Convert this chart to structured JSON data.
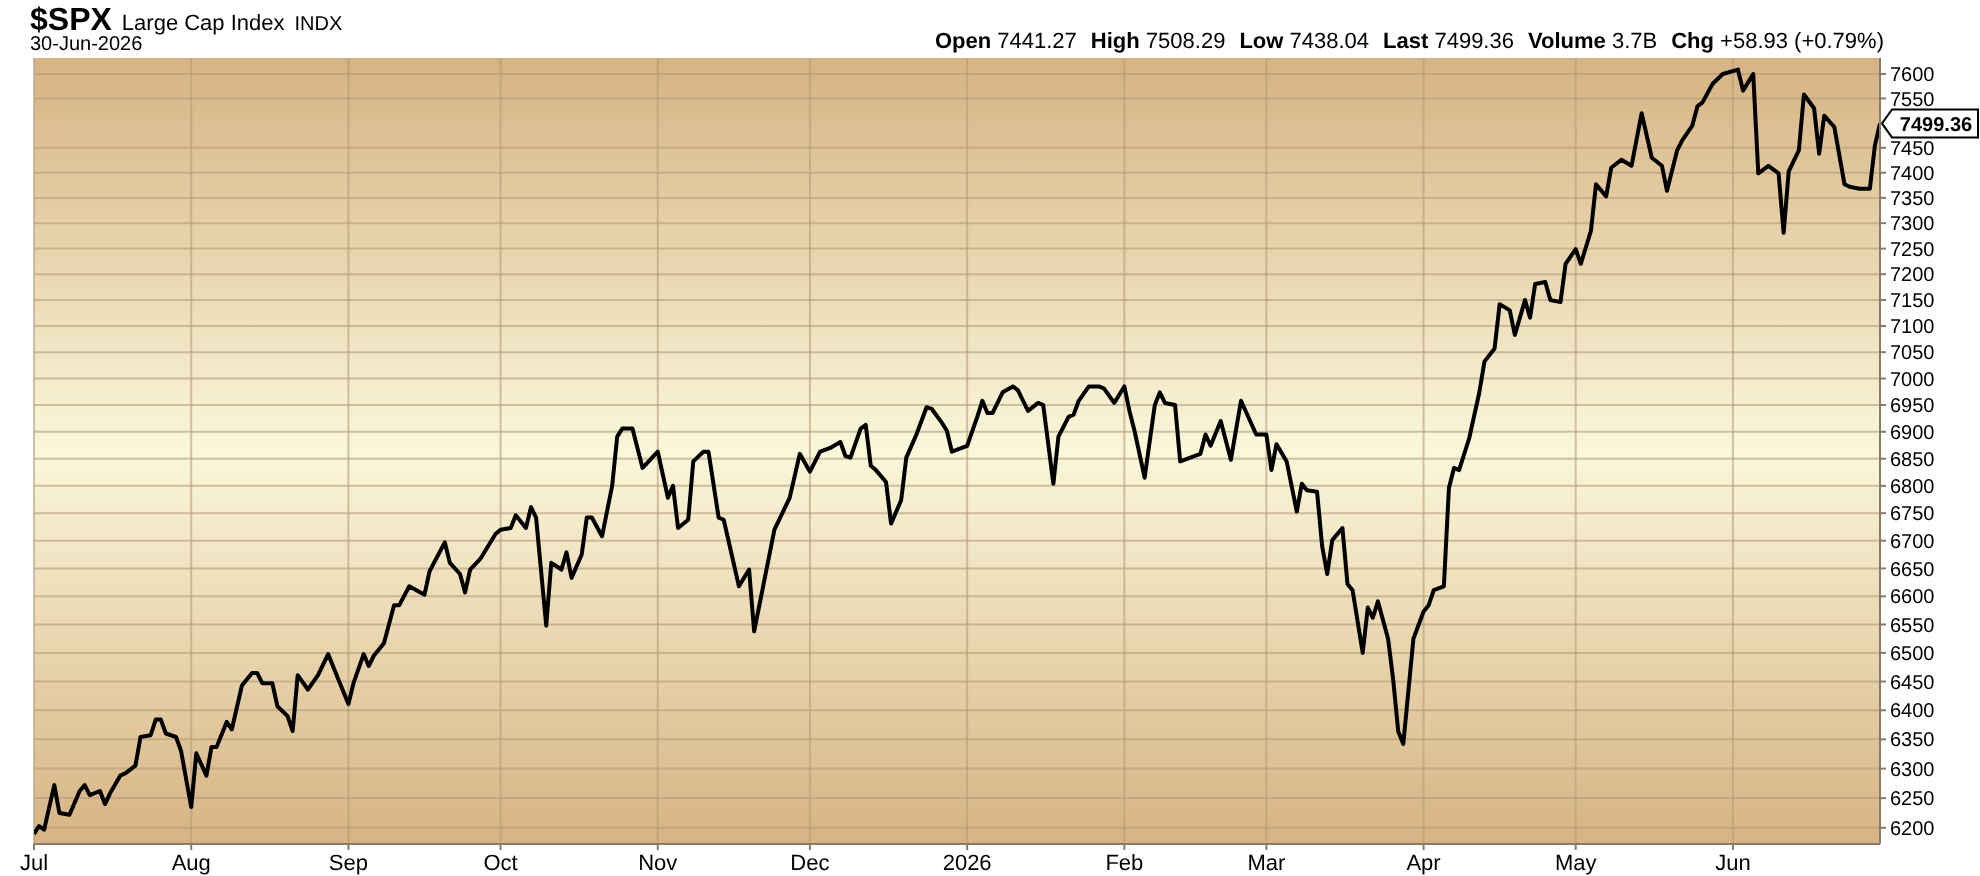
{
  "chart_data": {
    "type": "line",
    "title": "$SPX",
    "subtitle": "30-Jun-2026",
    "annotations": [
      "Large Cap Index",
      "INDX",
      "Open 7441.27",
      "High 7508.29",
      "Low 7438.04",
      "Last 7499.36",
      "Volume 3.7B",
      "Chg +58.93 (+0.79%)",
      {
        "text": "7499.36",
        "x": "2026-06-30",
        "y": 7499.36
      }
    ],
    "log": "y",
    "grid": true,
    "marker": "none",
    "line_style": "solid",
    "xlim": [
      "2025-07-01",
      "2026-06-30"
    ],
    "xticks": [
      {
        "value": "2025-07-01",
        "label": "Jul"
      },
      {
        "value": "2025-08-01",
        "label": "Aug"
      },
      {
        "value": "2025-09-01",
        "label": "Sep"
      },
      {
        "value": "2025-10-01",
        "label": "Oct"
      },
      {
        "value": "2025-11-01",
        "label": "Nov"
      },
      {
        "value": "2025-12-01",
        "label": "Dec"
      },
      {
        "value": "2026-01-01",
        "label": "2026"
      },
      {
        "value": "2026-02-01",
        "label": "Feb"
      },
      {
        "value": "2026-03-01",
        "label": "Mar"
      },
      {
        "value": "2026-04-01",
        "label": "Apr"
      },
      {
        "value": "2026-05-01",
        "label": "May"
      },
      {
        "value": "2026-06-01",
        "label": "Jun"
      }
    ],
    "ylim": [
      6173,
      7633
    ],
    "yticks": [
      6200,
      6250,
      6300,
      6350,
      6400,
      6450,
      6500,
      6550,
      6600,
      6650,
      6700,
      6750,
      6800,
      6850,
      6900,
      6950,
      7000,
      7050,
      7100,
      7150,
      7200,
      7250,
      7300,
      7350,
      7400,
      7450,
      7550,
      7600
    ],
    "x": [
      "2025-07-01",
      "2025-07-02",
      "2025-07-03",
      "2025-07-05",
      "2025-07-06",
      "2025-07-08",
      "2025-07-10",
      "2025-07-11",
      "2025-07-12",
      "2025-07-14",
      "2025-07-15",
      "2025-07-16",
      "2025-07-18",
      "2025-07-19",
      "2025-07-21",
      "2025-07-22",
      "2025-07-24",
      "2025-07-25",
      "2025-07-26",
      "2025-07-27",
      "2025-07-29",
      "2025-07-30",
      "2025-08-01",
      "2025-08-02",
      "2025-08-04",
      "2025-08-05",
      "2025-08-06",
      "2025-08-08",
      "2025-08-09",
      "2025-08-11",
      "2025-08-13",
      "2025-08-14",
      "2025-08-15",
      "2025-08-17",
      "2025-08-18",
      "2025-08-20",
      "2025-08-21",
      "2025-08-22",
      "2025-08-24",
      "2025-08-26",
      "2025-08-28",
      "2025-08-30",
      "2025-09-01",
      "2025-09-02",
      "2025-09-04",
      "2025-09-05",
      "2025-09-06",
      "2025-09-08",
      "2025-09-10",
      "2025-09-11",
      "2025-09-13",
      "2025-09-16",
      "2025-09-17",
      "2025-09-20",
      "2025-09-21",
      "2025-09-23",
      "2025-09-24",
      "2025-09-25",
      "2025-09-27",
      "2025-09-30",
      "2025-10-01",
      "2025-10-03",
      "2025-10-04",
      "2025-10-06",
      "2025-10-07",
      "2025-10-08",
      "2025-10-10",
      "2025-10-11",
      "2025-10-13",
      "2025-10-14",
      "2025-10-15",
      "2025-10-17",
      "2025-10-18",
      "2025-10-19",
      "2025-10-21",
      "2025-10-23",
      "2025-10-24",
      "2025-10-25",
      "2025-10-27",
      "2025-10-29",
      "2025-11-01",
      "2025-11-03",
      "2025-11-04",
      "2025-11-05",
      "2025-11-07",
      "2025-11-08",
      "2025-11-10",
      "2025-11-11",
      "2025-11-13",
      "2025-11-14",
      "2025-11-17",
      "2025-11-19",
      "2025-11-20",
      "2025-11-24",
      "2025-11-27",
      "2025-11-29",
      "2025-12-01",
      "2025-12-03",
      "2025-12-05",
      "2025-12-07",
      "2025-12-08",
      "2025-12-09",
      "2025-12-11",
      "2025-12-12",
      "2025-12-13",
      "2025-12-14",
      "2025-12-16",
      "2025-12-17",
      "2025-12-19",
      "2025-12-20",
      "2025-12-22",
      "2025-12-24",
      "2025-12-25",
      "2025-12-27",
      "2025-12-28",
      "2025-12-29",
      "2026-01-01",
      "2026-01-03",
      "2026-01-04",
      "2026-01-05",
      "2026-01-06",
      "2026-01-08",
      "2026-01-10",
      "2026-01-11",
      "2026-01-13",
      "2026-01-15",
      "2026-01-16",
      "2026-01-18",
      "2026-01-19",
      "2026-01-21",
      "2026-01-22",
      "2026-01-23",
      "2026-01-25",
      "2026-01-27",
      "2026-01-28",
      "2026-01-30",
      "2026-02-01",
      "2026-02-02",
      "2026-02-03",
      "2026-02-05",
      "2026-02-07",
      "2026-02-08",
      "2026-02-09",
      "2026-02-11",
      "2026-02-12",
      "2026-02-14",
      "2026-02-16",
      "2026-02-17",
      "2026-02-18",
      "2026-02-20",
      "2026-02-22",
      "2026-02-24",
      "2026-02-27",
      "2026-03-01",
      "2026-03-02",
      "2026-03-03",
      "2026-03-05",
      "2026-03-07",
      "2026-03-08",
      "2026-03-09",
      "2026-03-11",
      "2026-03-12",
      "2026-03-13",
      "2026-03-14",
      "2026-03-16",
      "2026-03-17",
      "2026-03-18",
      "2026-03-20",
      "2026-03-21",
      "2026-03-22",
      "2026-03-23",
      "2026-03-25",
      "2026-03-26",
      "2026-03-27",
      "2026-03-28",
      "2026-03-30",
      "2026-04-01",
      "2026-04-02",
      "2026-04-03",
      "2026-04-05",
      "2026-04-06",
      "2026-04-07",
      "2026-04-08",
      "2026-04-10",
      "2026-04-12",
      "2026-04-13",
      "2026-04-15",
      "2026-04-16",
      "2026-04-18",
      "2026-04-19",
      "2026-04-21",
      "2026-04-22",
      "2026-04-23",
      "2026-04-25",
      "2026-04-26",
      "2026-04-28",
      "2026-04-29",
      "2026-05-01",
      "2026-05-02",
      "2026-05-04",
      "2026-05-05",
      "2026-05-07",
      "2026-05-08",
      "2026-05-10",
      "2026-05-12",
      "2026-05-14",
      "2026-05-16",
      "2026-05-18",
      "2026-05-19",
      "2026-05-21",
      "2026-05-22",
      "2026-05-24",
      "2026-05-25",
      "2026-05-26",
      "2026-05-28",
      "2026-05-30",
      "2026-06-02",
      "2026-06-03",
      "2026-06-05",
      "2026-06-06",
      "2026-06-08",
      "2026-06-10",
      "2026-06-11",
      "2026-06-12",
      "2026-06-14",
      "2026-06-15",
      "2026-06-17",
      "2026-06-18",
      "2026-06-19",
      "2026-06-21",
      "2026-06-23",
      "2026-06-24",
      "2026-06-26",
      "2026-06-28",
      "2026-06-29",
      "2026-06-30"
    ],
    "series": [
      {
        "color": "#000000",
        "values": [
          6190,
          6203,
          6197,
          6272,
          6225,
          6222,
          6262,
          6272,
          6255,
          6262,
          6240,
          6258,
          6288,
          6292,
          6305,
          6354,
          6357,
          6384,
          6384,
          6360,
          6354,
          6330,
          6235,
          6326,
          6288,
          6337,
          6337,
          6380,
          6367,
          6443,
          6465,
          6465,
          6447,
          6447,
          6407,
          6390,
          6364,
          6461,
          6436,
          6461,
          6498,
          6454,
          6411,
          6447,
          6498,
          6477,
          6495,
          6517,
          6584,
          6584,
          6618,
          6603,
          6645,
          6697,
          6660,
          6640,
          6607,
          6648,
          6667,
          6712,
          6720,
          6723,
          6746,
          6723,
          6761,
          6742,
          6548,
          6660,
          6648,
          6679,
          6633,
          6675,
          6742,
          6742,
          6708,
          6800,
          6891,
          6906,
          6906,
          6833,
          6863,
          6778,
          6800,
          6723,
          6738,
          6845,
          6863,
          6863,
          6742,
          6738,
          6618,
          6648,
          6538,
          6720,
          6778,
          6859,
          6826,
          6863,
          6870,
          6881,
          6855,
          6852,
          6906,
          6913,
          6837,
          6829,
          6807,
          6731,
          6774,
          6852,
          6895,
          6946,
          6943,
          6917,
          6902,
          6863,
          6874,
          6928,
          6958,
          6935,
          6935,
          6974,
          6985,
          6978,
          6939,
          6954,
          6950,
          6804,
          6891,
          6928,
          6932,
          6958,
          6985,
          6985,
          6981,
          6954,
          6985,
          6939,
          6902,
          6815,
          6950,
          6974,
          6954,
          6950,
          6845,
          6852,
          6859,
          6895,
          6874,
          6920,
          6848,
          6958,
          6895,
          6895,
          6829,
          6877,
          6845,
          6753,
          6804,
          6792,
          6789,
          6690,
          6640,
          6701,
          6723,
          6622,
          6611,
          6500,
          6580,
          6562,
          6591,
          6525,
          6454,
          6364,
          6342,
          6525,
          6573,
          6584,
          6611,
          6618,
          6796,
          6833,
          6829,
          6888,
          6974,
          7032,
          7057,
          7142,
          7130,
          7083,
          7150,
          7116,
          7181,
          7185,
          7150,
          7146,
          7220,
          7249,
          7220,
          7285,
          7377,
          7353,
          7410,
          7426,
          7414,
          7520,
          7430,
          7414,
          7364,
          7445,
          7465,
          7495,
          7534,
          7542,
          7580,
          7600,
          7609,
          7566,
          7600,
          7399,
          7414,
          7399,
          7281,
          7403,
          7445,
          7558,
          7530,
          7438,
          7515,
          7492,
          7377,
          7372,
          7368,
          7368,
          7455,
          7499.36
        ]
      }
    ]
  }
}
